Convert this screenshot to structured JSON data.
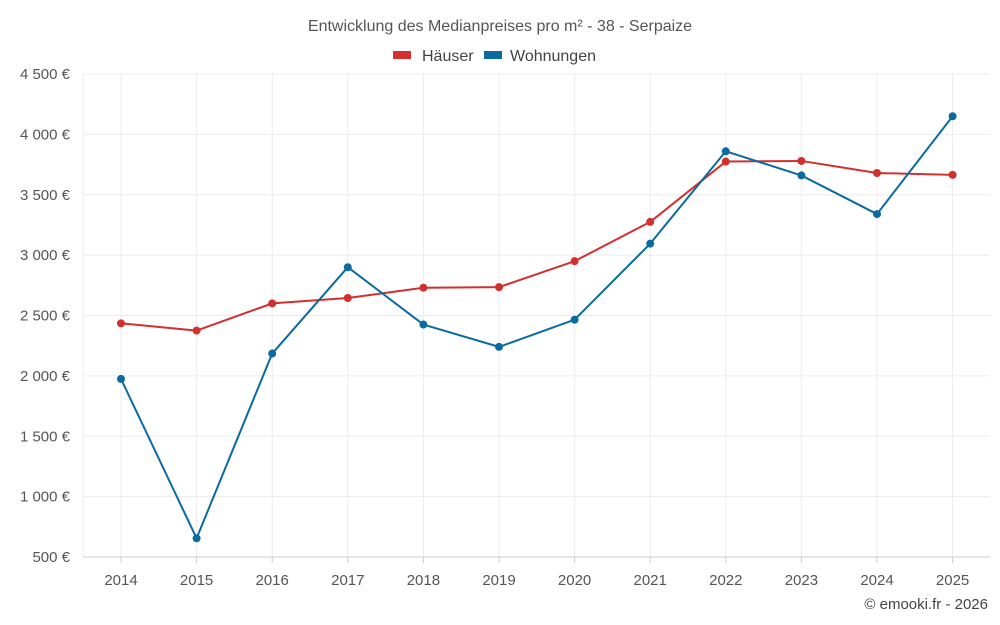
{
  "chart_data": {
    "type": "line",
    "title": "Entwicklung des Medianpreises pro m² - 38 - Serpaize",
    "categories": [
      "2014",
      "2015",
      "2016",
      "2017",
      "2018",
      "2019",
      "2020",
      "2021",
      "2022",
      "2023",
      "2024",
      "2025"
    ],
    "series": [
      {
        "name": "Häuser",
        "color": "#d32f2f",
        "values": [
          2435,
          2375,
          2600,
          2645,
          2730,
          2735,
          2950,
          3275,
          3775,
          3780,
          3680,
          3665
        ]
      },
      {
        "name": "Wohnungen",
        "color": "#0b6aa0",
        "values": [
          1975,
          655,
          2185,
          2900,
          2425,
          2240,
          2465,
          3095,
          3860,
          3660,
          3340,
          4150
        ]
      }
    ],
    "yticks": [
      "500 €",
      "1 000 €",
      "1 500 €",
      "2 000 €",
      "2 500 €",
      "3 000 €",
      "3 500 €",
      "4 000 €",
      "4 500 €"
    ],
    "ylim": [
      500,
      4500
    ],
    "xlabel": "",
    "ylabel": "",
    "grid": true,
    "legend": "top-center"
  },
  "credit": "© emooki.fr - 2026"
}
